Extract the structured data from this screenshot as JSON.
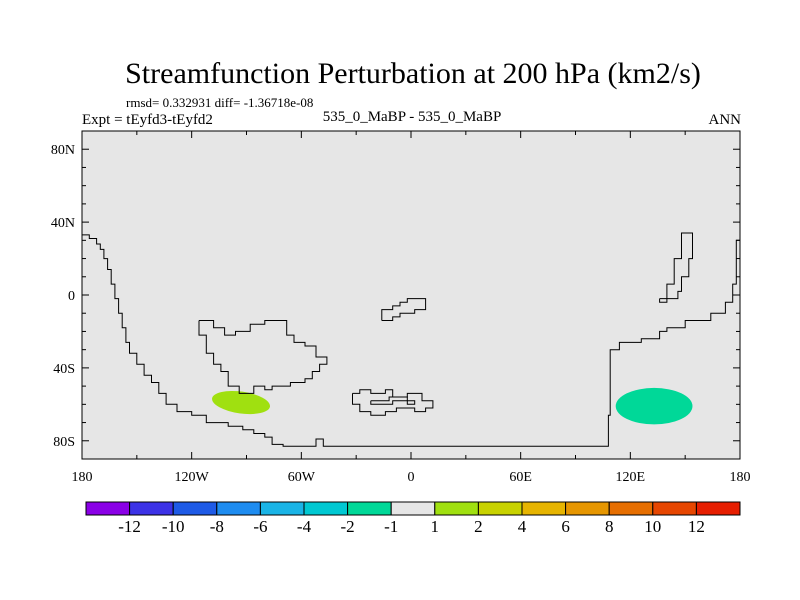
{
  "chart_data": {
    "type": "heatmap",
    "title": "Streamfunction Perturbation at 200 hPa (km2/s)",
    "stats": "rmsd= 0.332931  diff= -1.36718e-08",
    "expt": "Expt = tEyfd3-tEyfd2",
    "case": "535_0_MaBP - 535_0_MaBP",
    "season": "ANN",
    "x_range": [
      -180,
      180
    ],
    "y_range": [
      -90,
      90
    ],
    "x_ticks": [
      {
        "value": -180,
        "label": "180"
      },
      {
        "value": -120,
        "label": "120W"
      },
      {
        "value": -60,
        "label": "60W"
      },
      {
        "value": 0,
        "label": "0"
      },
      {
        "value": 60,
        "label": "60E"
      },
      {
        "value": 120,
        "label": "120E"
      },
      {
        "value": 180,
        "label": "180"
      }
    ],
    "y_ticks": [
      {
        "value": 80,
        "label": "80N"
      },
      {
        "value": 40,
        "label": "40N"
      },
      {
        "value": 0,
        "label": "0"
      },
      {
        "value": -40,
        "label": "40S"
      },
      {
        "value": -80,
        "label": "80S"
      }
    ],
    "field_background": "#e6e6e6",
    "anomalies": [
      {
        "name": "positive-anomaly",
        "lon": -93,
        "lat": -59,
        "rlon": 16,
        "rlat": 6,
        "rotate": 8,
        "range": "1 to 2",
        "color": "#a0e010"
      },
      {
        "name": "negative-anomaly",
        "lon": 133,
        "lat": -61,
        "rlon": 21,
        "rlat": 10,
        "rotate": 0,
        "range": "-2 to -1",
        "color": "#00d898"
      }
    ],
    "colorbar": {
      "colors": [
        "#8a00e6",
        "#3c32e6",
        "#1e5ae6",
        "#1e8cf0",
        "#1ab4e6",
        "#00c8d2",
        "#00d898",
        "#e6e6e6",
        "#a0e010",
        "#c8d200",
        "#e6b400",
        "#e69600",
        "#e66e00",
        "#e64600",
        "#e61e00"
      ],
      "labels": [
        "-12",
        "-10",
        "-8",
        "-6",
        "-4",
        "-2",
        "-1",
        "1",
        "2",
        "4",
        "6",
        "8",
        "10",
        "12"
      ]
    },
    "outlines": [
      [
        [
          -180,
          33
        ],
        [
          -176,
          33
        ],
        [
          -176,
          31
        ],
        [
          -172,
          31
        ],
        [
          -172,
          28
        ],
        [
          -170,
          28
        ],
        [
          -170,
          25
        ],
        [
          -168,
          25
        ],
        [
          -168,
          20
        ],
        [
          -166,
          20
        ],
        [
          -166,
          14
        ],
        [
          -164,
          14
        ],
        [
          -164,
          6
        ],
        [
          -162,
          6
        ],
        [
          -162,
          -2
        ],
        [
          -160,
          -2
        ],
        [
          -160,
          -10
        ],
        [
          -158,
          -10
        ],
        [
          -158,
          -18
        ],
        [
          -156,
          -18
        ],
        [
          -156,
          -26
        ],
        [
          -154,
          -26
        ],
        [
          -154,
          -32
        ],
        [
          -150,
          -32
        ],
        [
          -150,
          -38
        ],
        [
          -146,
          -38
        ],
        [
          -146,
          -44
        ],
        [
          -142,
          -44
        ],
        [
          -142,
          -48
        ],
        [
          -138,
          -48
        ],
        [
          -138,
          -54
        ],
        [
          -134,
          -54
        ],
        [
          -134,
          -60
        ],
        [
          -128,
          -60
        ],
        [
          -128,
          -64
        ],
        [
          -120,
          -64
        ],
        [
          -120,
          -66
        ],
        [
          -112,
          -66
        ],
        [
          -112,
          -70
        ],
        [
          -100,
          -70
        ],
        [
          -100,
          -72
        ],
        [
          -92,
          -72
        ],
        [
          -92,
          -74
        ],
        [
          -86,
          -74
        ],
        [
          -86,
          -76
        ],
        [
          -80,
          -76
        ],
        [
          -80,
          -78
        ],
        [
          -76,
          -78
        ],
        [
          -76,
          -82
        ],
        [
          -70,
          -82
        ],
        [
          -70,
          -83
        ],
        [
          -52,
          -83
        ],
        [
          -52,
          -79
        ],
        [
          -48,
          -79
        ],
        [
          -48,
          -83
        ],
        [
          108,
          -83
        ],
        [
          108,
          -66
        ],
        [
          109,
          -66
        ],
        [
          109,
          -30
        ],
        [
          114,
          -30
        ],
        [
          114,
          -26
        ],
        [
          126,
          -26
        ],
        [
          126,
          -24
        ],
        [
          136,
          -24
        ],
        [
          136,
          -20
        ],
        [
          140,
          -20
        ],
        [
          140,
          -18
        ],
        [
          150,
          -18
        ],
        [
          150,
          -14
        ],
        [
          164,
          -14
        ],
        [
          164,
          -10
        ],
        [
          172,
          -10
        ],
        [
          172,
          -4
        ],
        [
          176,
          -4
        ],
        [
          176,
          6
        ],
        [
          178,
          6
        ],
        [
          178,
          30
        ],
        [
          180,
          30
        ]
      ],
      [
        [
          -116,
          -14
        ],
        [
          -116,
          -22
        ],
        [
          -112,
          -22
        ],
        [
          -112,
          -32
        ],
        [
          -108,
          -32
        ],
        [
          -108,
          -38
        ],
        [
          -104,
          -38
        ],
        [
          -104,
          -42
        ],
        [
          -100,
          -42
        ],
        [
          -100,
          -50
        ],
        [
          -94,
          -50
        ],
        [
          -94,
          -54
        ],
        [
          -86,
          -54
        ],
        [
          -86,
          -50
        ],
        [
          -80,
          -50
        ],
        [
          -80,
          -52
        ],
        [
          -76,
          -52
        ],
        [
          -76,
          -50
        ],
        [
          -66,
          -50
        ],
        [
          -66,
          -48
        ],
        [
          -58,
          -48
        ],
        [
          -58,
          -46
        ],
        [
          -54,
          -46
        ],
        [
          -54,
          -42
        ],
        [
          -50,
          -42
        ],
        [
          -50,
          -38
        ],
        [
          -46,
          -38
        ],
        [
          -46,
          -34
        ],
        [
          -52,
          -34
        ],
        [
          -52,
          -28
        ],
        [
          -58,
          -28
        ],
        [
          -58,
          -26
        ],
        [
          -64,
          -26
        ],
        [
          -64,
          -22
        ],
        [
          -68,
          -22
        ],
        [
          -68,
          -14
        ],
        [
          -80,
          -14
        ],
        [
          -80,
          -16
        ],
        [
          -88,
          -16
        ],
        [
          -88,
          -20
        ],
        [
          -96,
          -20
        ],
        [
          -96,
          -22
        ],
        [
          -102,
          -22
        ],
        [
          -102,
          -18
        ],
        [
          -108,
          -18
        ],
        [
          -108,
          -14
        ],
        [
          -116,
          -14
        ]
      ],
      [
        [
          -16,
          -14
        ],
        [
          -16,
          -8
        ],
        [
          -10,
          -8
        ],
        [
          -10,
          -6
        ],
        [
          -6,
          -6
        ],
        [
          -6,
          -4
        ],
        [
          -2,
          -4
        ],
        [
          -2,
          -2
        ],
        [
          8,
          -2
        ],
        [
          8,
          -8
        ],
        [
          2,
          -8
        ],
        [
          2,
          -10
        ],
        [
          -6,
          -10
        ],
        [
          -6,
          -12
        ],
        [
          -10,
          -12
        ],
        [
          -10,
          -14
        ],
        [
          -16,
          -14
        ]
      ],
      [
        [
          -32,
          -54
        ],
        [
          -32,
          -60
        ],
        [
          -28,
          -60
        ],
        [
          -28,
          -64
        ],
        [
          -22,
          -64
        ],
        [
          -22,
          -66
        ],
        [
          -14,
          -66
        ],
        [
          -14,
          -64
        ],
        [
          -8,
          -64
        ],
        [
          -8,
          -62
        ],
        [
          2,
          -62
        ],
        [
          2,
          -64
        ],
        [
          8,
          -64
        ],
        [
          8,
          -62
        ],
        [
          12,
          -62
        ],
        [
          12,
          -58
        ],
        [
          6,
          -58
        ],
        [
          6,
          -54
        ],
        [
          -2,
          -54
        ],
        [
          -2,
          -56
        ],
        [
          -10,
          -56
        ],
        [
          -10,
          -52
        ],
        [
          -14,
          -52
        ],
        [
          -14,
          -54
        ],
        [
          -22,
          -54
        ],
        [
          -22,
          -52
        ],
        [
          -28,
          -52
        ],
        [
          -28,
          -54
        ],
        [
          -32,
          -54
        ]
      ],
      [
        [
          -22,
          -58
        ],
        [
          -22,
          -60
        ],
        [
          -10,
          -60
        ],
        [
          -10,
          -58
        ],
        [
          -2,
          -58
        ],
        [
          -2,
          -60
        ],
        [
          2,
          -60
        ],
        [
          2,
          -58
        ],
        [
          -2,
          -58
        ],
        [
          -2,
          -56
        ],
        [
          -12,
          -56
        ],
        [
          -12,
          -58
        ],
        [
          -22,
          -58
        ]
      ],
      [
        [
          136,
          -2
        ],
        [
          136,
          -4
        ],
        [
          140,
          -4
        ],
        [
          140,
          6
        ],
        [
          144,
          6
        ],
        [
          144,
          20
        ],
        [
          148,
          20
        ],
        [
          148,
          34
        ],
        [
          154,
          34
        ],
        [
          154,
          20
        ],
        [
          152,
          20
        ],
        [
          152,
          10
        ],
        [
          148,
          10
        ],
        [
          148,
          2
        ],
        [
          146,
          2
        ],
        [
          146,
          -2
        ],
        [
          136,
          -2
        ]
      ]
    ]
  }
}
